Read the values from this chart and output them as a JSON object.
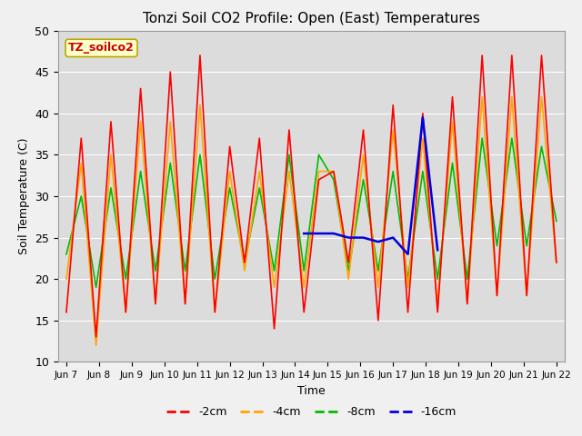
{
  "title": "Tonzi Soil CO2 Profile: Open (East) Temperatures",
  "xlabel": "Time",
  "ylabel": "Soil Temperature (C)",
  "ylim": [
    10,
    50
  ],
  "legend_label": "TZ_soilco2",
  "series_labels": [
    "-2cm",
    "-4cm",
    "-8cm",
    "-16cm"
  ],
  "series_colors": [
    "#ff0000",
    "#ffa500",
    "#00bb00",
    "#0000dd"
  ],
  "background_color": "#dcdcdc",
  "tick_labels": [
    "Jun 7",
    "Jun 8",
    "Jun 9",
    "Jun 10",
    "Jun 11",
    "Jun 12",
    "Jun 13",
    "Jun 14",
    "Jun 15",
    "Jun 16",
    "Jun 17",
    "Jun 18",
    "Jun 19",
    "Jun 20",
    "Jun 21",
    "Jun 22"
  ],
  "data_2cm": [
    16,
    37,
    13,
    39,
    16,
    43,
    17,
    45,
    17,
    47,
    16,
    36,
    22,
    37,
    14,
    38,
    16,
    32,
    33,
    22,
    38,
    15,
    41,
    16,
    40,
    16,
    42,
    17,
    47,
    18,
    47,
    18,
    47,
    22
  ],
  "data_4cm": [
    20,
    34,
    12,
    35,
    16,
    39,
    17,
    39,
    17,
    41,
    16,
    33,
    21,
    33,
    19,
    33,
    19,
    33,
    33,
    20,
    35,
    19,
    38,
    19,
    37,
    17,
    39,
    17,
    42,
    18,
    42,
    18,
    42,
    22
  ],
  "data_8cm": [
    23,
    30,
    19,
    31,
    20,
    33,
    21,
    34,
    21,
    35,
    20,
    31,
    22,
    31,
    21,
    35,
    21,
    35,
    32,
    21,
    32,
    21,
    33,
    20,
    33,
    20,
    34,
    20,
    37,
    24,
    37,
    24,
    36,
    27
  ],
  "data_16cm": [
    null,
    null,
    null,
    null,
    null,
    null,
    null,
    null,
    null,
    null,
    null,
    null,
    null,
    null,
    null,
    null,
    25.5,
    25.5,
    25.5,
    25.0,
    25.0,
    24.5,
    25.0,
    23.0,
    39.5,
    23.5,
    null,
    null,
    null,
    null,
    null,
    null,
    null,
    null
  ],
  "figsize": [
    6.4,
    4.8
  ],
  "dpi": 100,
  "plot_bgcolor": "#dcdcdc",
  "fig_bgcolor": "#f0f0f0"
}
